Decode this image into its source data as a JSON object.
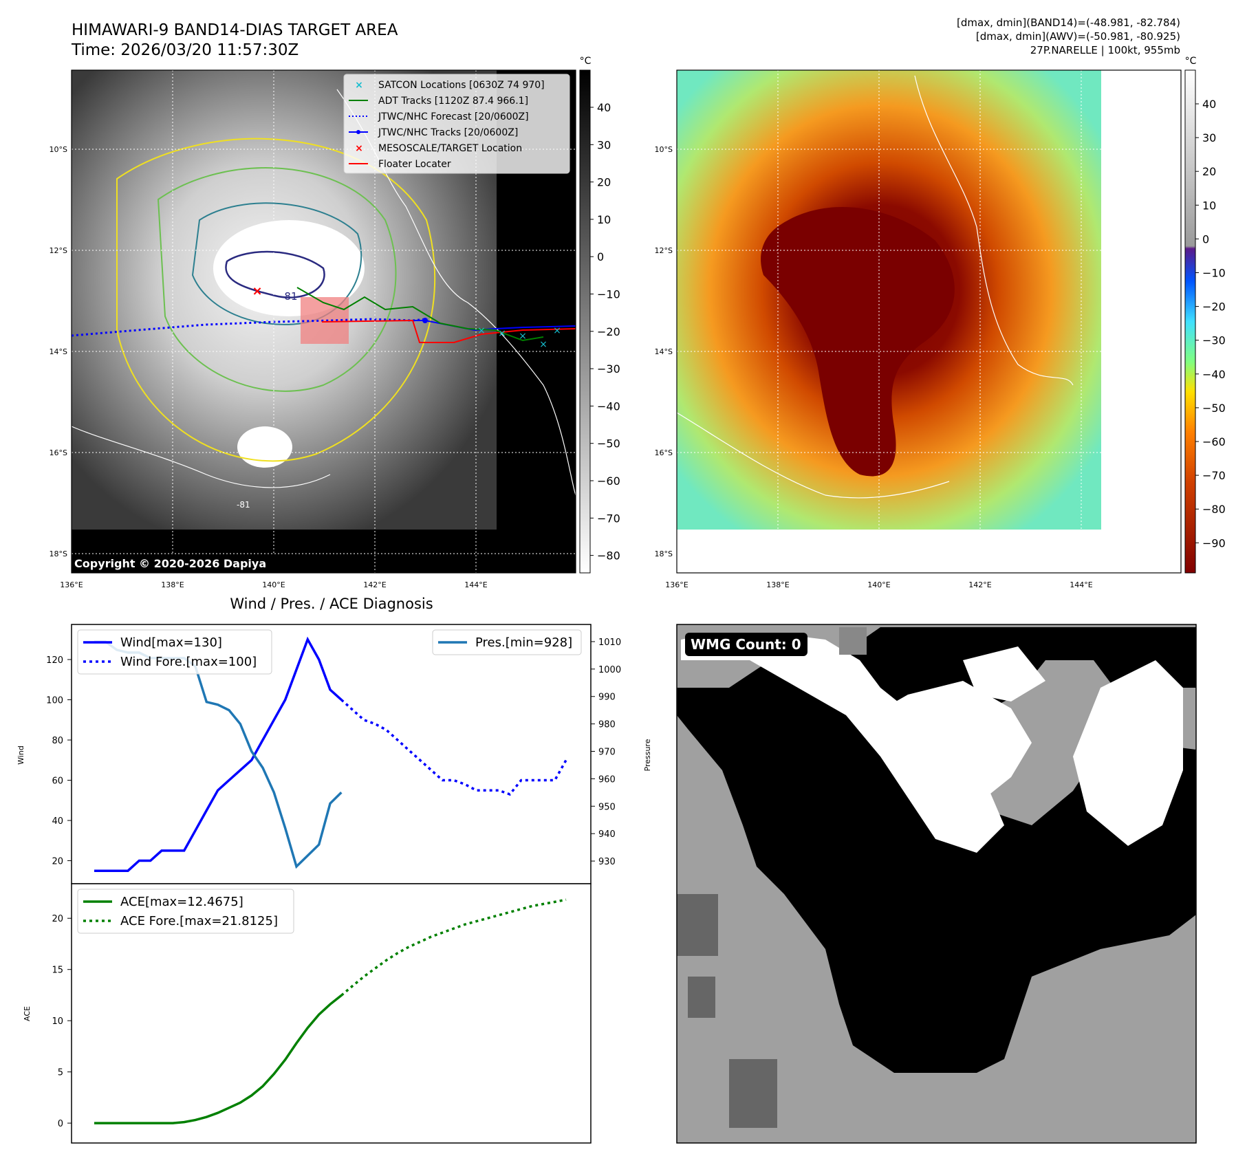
{
  "header": {
    "title_line1": "HIMAWARI-9 BAND14-DIAS TARGET AREA",
    "title_line2": "Time: 2026/03/20 11:57:30Z",
    "info_line1": "[dmax, dmin](BAND14)=(-48.981, -82.784)",
    "info_line2": "[dmax, dmin](AWV)=(-50.981, -80.925)",
    "info_line3": "27P.NARELLE | 100kt, 955mb"
  },
  "map": {
    "lat_labels": [
      "10°S",
      "12°S",
      "14°S",
      "16°S",
      "18°S"
    ],
    "lon_labels": [
      "136°E",
      "138°E",
      "140°E",
      "142°E",
      "144°E"
    ],
    "copyright": "Copyright © 2020-2026 Dapiya",
    "contour_labels": [
      "-81",
      "-81"
    ],
    "legend": [
      {
        "label": "SATCON Locations [0630Z 74 970]",
        "color": "#17becf",
        "kind": "x"
      },
      {
        "label": "ADT Tracks [1120Z 87.4 966.1]",
        "color": "#008000",
        "kind": "line"
      },
      {
        "label": "JTWC/NHC Forecast [20/0600Z]",
        "color": "#0000ff",
        "kind": "dotted"
      },
      {
        "label": "JTWC/NHC Tracks [20/0600Z]",
        "color": "#0000ff",
        "kind": "line-dot"
      },
      {
        "label": "MESOSCALE/TARGET Location",
        "color": "#ff0000",
        "kind": "x"
      },
      {
        "label": "Floater Locater",
        "color": "#ff0000",
        "kind": "line"
      }
    ]
  },
  "colorbar_gray": {
    "unit": "°C",
    "ticks": [
      "40",
      "30",
      "20",
      "10",
      "0",
      "−10",
      "−20",
      "−30",
      "−40",
      "−50",
      "−60",
      "−70",
      "−80"
    ]
  },
  "colorbar_color": {
    "unit": "°C",
    "ticks": [
      "40",
      "30",
      "20",
      "10",
      "0",
      "−10",
      "−20",
      "−30",
      "−40",
      "−50",
      "−60",
      "−70",
      "−80",
      "−90"
    ]
  },
  "wmg": {
    "badge": "WMG Count: 0"
  },
  "chart_data": [
    {
      "type": "line",
      "title": "Wind / Pres. / ACE Diagnosis",
      "xlabel": "",
      "ylabel": "Wind",
      "y2label": "Pressure",
      "ylim": [
        13,
        133
      ],
      "y2lim": [
        925,
        1013
      ],
      "yticks": [
        20,
        40,
        60,
        80,
        100,
        120
      ],
      "y2ticks": [
        930,
        940,
        950,
        960,
        970,
        980,
        990,
        1000,
        1010
      ],
      "series": [
        {
          "name": "Wind[max=130]",
          "color": "#0000ff",
          "style": "solid",
          "x": [
            0,
            1,
            2,
            3,
            4,
            5,
            6,
            7,
            8,
            9,
            10,
            11,
            12,
            13,
            14,
            15,
            16,
            17,
            18,
            19,
            20,
            21,
            22
          ],
          "values": [
            15,
            15,
            15,
            15,
            20,
            20,
            25,
            25,
            25,
            35,
            45,
            55,
            60,
            65,
            70,
            80,
            90,
            100,
            115,
            130,
            120,
            105,
            100
          ]
        },
        {
          "name": "Wind Fore.[max=100]",
          "color": "#0000ff",
          "style": "dotted",
          "x": [
            22,
            23,
            24,
            25,
            26,
            27,
            28,
            29,
            30,
            31,
            32,
            33,
            34,
            35,
            36,
            37,
            38,
            39,
            40,
            41,
            42
          ],
          "values": [
            100,
            95,
            90,
            88,
            85,
            80,
            75,
            70,
            65,
            60,
            60,
            58,
            55,
            55,
            55,
            53,
            60,
            60,
            60,
            60,
            70
          ]
        },
        {
          "name": "Pres.[min=928]",
          "color": "#1f77b4",
          "style": "solid",
          "axis": "right",
          "x": [
            0,
            1,
            2,
            3,
            4,
            5,
            6,
            7,
            8,
            9,
            10,
            11,
            12,
            13,
            14,
            15,
            16,
            17,
            18,
            19,
            20,
            21,
            22
          ],
          "values": [
            1010,
            1010,
            1007,
            1006,
            1006,
            1004,
            1004,
            1004,
            1004,
            1001,
            988,
            987,
            985,
            980,
            970,
            964,
            955,
            942,
            928,
            932,
            936,
            951,
            955
          ]
        }
      ]
    },
    {
      "type": "line",
      "xlabel": "",
      "ylabel": "ACE",
      "ylim": [
        -1,
        22.5
      ],
      "yticks": [
        0,
        5,
        10,
        15,
        20
      ],
      "series": [
        {
          "name": "ACE[max=12.4675]",
          "color": "#008000",
          "style": "solid",
          "x": [
            0,
            1,
            2,
            3,
            4,
            5,
            6,
            7,
            8,
            9,
            10,
            11,
            12,
            13,
            14,
            15,
            16,
            17,
            18,
            19,
            20,
            21,
            22
          ],
          "values": [
            0,
            0,
            0,
            0,
            0,
            0,
            0,
            0,
            0.1,
            0.3,
            0.6,
            1.0,
            1.5,
            2.0,
            2.7,
            3.6,
            4.8,
            6.2,
            7.8,
            9.3,
            10.6,
            11.6,
            12.4675
          ]
        },
        {
          "name": "ACE Fore.[max=21.8125]",
          "color": "#008000",
          "style": "dotted",
          "x": [
            22,
            23,
            24,
            25,
            26,
            27,
            28,
            29,
            30,
            31,
            32,
            33,
            34,
            35,
            36,
            37,
            38,
            39,
            40,
            41,
            42
          ],
          "values": [
            12.47,
            13.4,
            14.3,
            15.1,
            15.9,
            16.6,
            17.2,
            17.7,
            18.2,
            18.6,
            19.0,
            19.4,
            19.7,
            20.0,
            20.3,
            20.6,
            20.9,
            21.2,
            21.4,
            21.6,
            21.8125
          ]
        }
      ]
    }
  ]
}
